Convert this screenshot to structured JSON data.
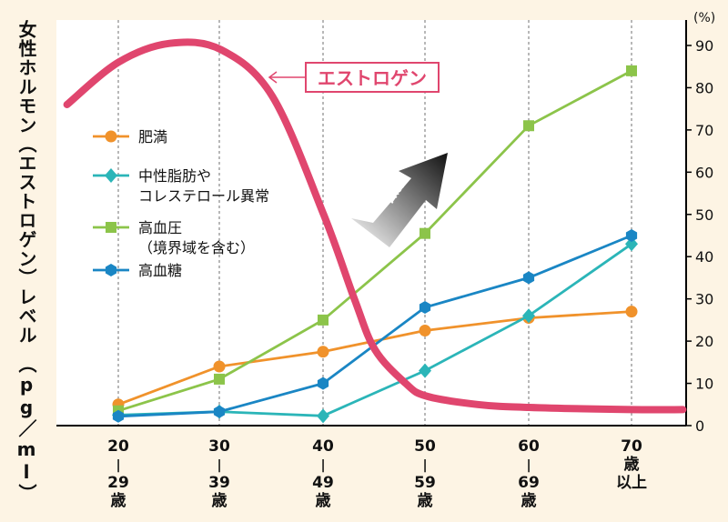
{
  "chart_data": {
    "type": "line",
    "ylabel": "女性ホルモン（エストロゲン）レベル　（pg／ml）",
    "y2_unit": "(%)",
    "y2lim": [
      0,
      90
    ],
    "y2_ticks": [
      "0",
      "10",
      "20",
      "30",
      "40",
      "50",
      "60",
      "70",
      "80",
      "90"
    ],
    "x_ticks": [
      {
        "top": "20",
        "mid": "|",
        "sub": "29",
        "unit": "歳"
      },
      {
        "top": "30",
        "mid": "|",
        "sub": "39",
        "unit": "歳"
      },
      {
        "top": "40",
        "mid": "|",
        "sub": "49",
        "unit": "歳"
      },
      {
        "top": "50",
        "mid": "|",
        "sub": "59",
        "unit": "歳"
      },
      {
        "top": "60",
        "mid": "|",
        "sub": "69",
        "unit": "歳"
      },
      {
        "top": "70",
        "mid": "歳",
        "sub": "以上",
        "unit": ""
      }
    ],
    "series": [
      {
        "name": "肥満",
        "color": "#f0922b",
        "marker": "circle",
        "values": [
          5,
          14,
          17.5,
          22.5,
          25.5,
          27
        ]
      },
      {
        "name": "中性脂肪や\nコレステロール異常",
        "color": "#2bb5b8",
        "marker": "diamond",
        "values": [
          2.5,
          3.3,
          2.3,
          13,
          26,
          43
        ]
      },
      {
        "name": "高血圧\n（境界域を含む）",
        "color": "#8cc44a",
        "marker": "square",
        "values": [
          3.5,
          11,
          25,
          45.5,
          71,
          84
        ]
      },
      {
        "name": "高血糖",
        "color": "#1a86c4",
        "marker": "hexagon",
        "values": [
          2.2,
          3.3,
          10,
          28,
          35,
          45
        ]
      }
    ],
    "estrogen": {
      "name": "エストロゲン",
      "color": "#e0466e",
      "note": "relative level (%-scale equivalent)",
      "points": [
        [
          15,
          76
        ],
        [
          20,
          86
        ],
        [
          25,
          90.5
        ],
        [
          30,
          89
        ],
        [
          35,
          78
        ],
        [
          40,
          50
        ],
        [
          43,
          30
        ],
        [
          45,
          18
        ],
        [
          48,
          10
        ],
        [
          50,
          7
        ],
        [
          55,
          5
        ],
        [
          60,
          4.3
        ],
        [
          70,
          3.8
        ],
        [
          75,
          3.8
        ]
      ]
    },
    "annotation": "増加",
    "grid": "vertical dashed at age groups"
  }
}
